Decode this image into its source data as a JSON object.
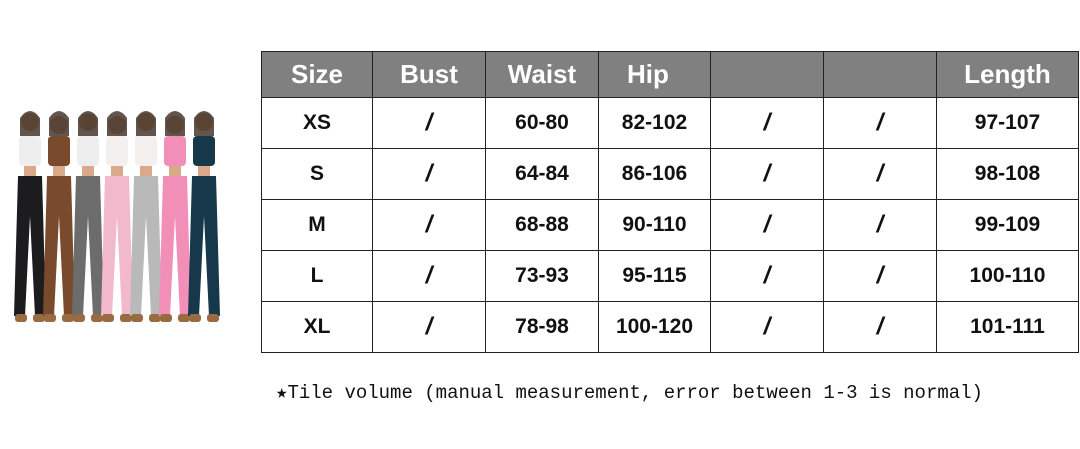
{
  "table": {
    "headers": [
      "Size",
      "Bust",
      "Waist",
      "Hip",
      "",
      "",
      "Length"
    ],
    "rows": [
      [
        "XS",
        "/",
        "60-80",
        "82-102",
        "/",
        "/",
        "97-107"
      ],
      [
        "S",
        "/",
        "64-84",
        "86-106",
        "/",
        "/",
        "98-108"
      ],
      [
        "M",
        "/",
        "68-88",
        "90-110",
        "/",
        "/",
        "99-109"
      ],
      [
        "L",
        "/",
        "73-93",
        "95-115",
        "/",
        "/",
        "100-110"
      ],
      [
        "XL",
        "/",
        "78-98",
        "100-120",
        "/",
        "/",
        "101-111"
      ]
    ]
  },
  "note": "★Tile volume (manual measurement, error between 1-3 is normal)",
  "colors": {
    "header_bg": "#808080",
    "header_text": "#ffffff",
    "border": "#222222"
  },
  "photo": {
    "pants_colors": [
      "#1c1c1e",
      "#7a4a2c",
      "#6c6c6c",
      "#f2b8cc",
      "#b9b9b9",
      "#f28fb8",
      "#16384a"
    ]
  }
}
